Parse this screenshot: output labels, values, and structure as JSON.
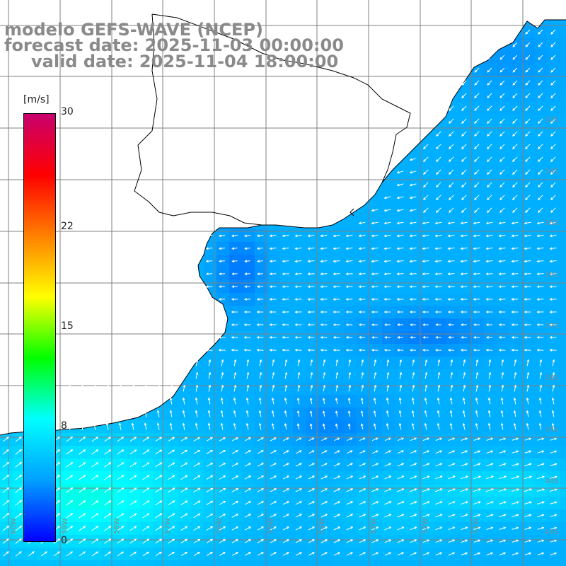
{
  "header": {
    "line1": "modelo GEFS-WAVE (NCEP)",
    "line2": "forecast date: 2025-11-03 00:00:00",
    "line3": "valid date: 2025-11-04 18:00:00"
  },
  "colorbar": {
    "unit": "[m/s]",
    "ticks": [
      "30",
      "22",
      "15",
      "8",
      "0"
    ],
    "tick_values": [
      30,
      22,
      15,
      8,
      0
    ],
    "min": 0,
    "max": 30,
    "colors": [
      "#0000ff",
      "#00a0ff",
      "#00ffff",
      "#00ff00",
      "#ffff00",
      "#ff8000",
      "#ff0000",
      "#c8006e"
    ]
  },
  "map": {
    "lon_range": [
      -59.5,
      -48.5
    ],
    "lat_range": [
      -41.3,
      -30.5
    ],
    "lat_labels": [
      "33S",
      "34S",
      "35S",
      "36S",
      "37S",
      "38S",
      "39S",
      "40S",
      "41S"
    ],
    "lon_labels": [
      "60W",
      "59W",
      "58W",
      "57W",
      "56W",
      "55W",
      "54W",
      "53W",
      "52W",
      "51W"
    ],
    "land_color": "#ffffff",
    "grid_color": "#808080",
    "coast_color": "#000000",
    "arrow_color": "#ffffff"
  }
}
